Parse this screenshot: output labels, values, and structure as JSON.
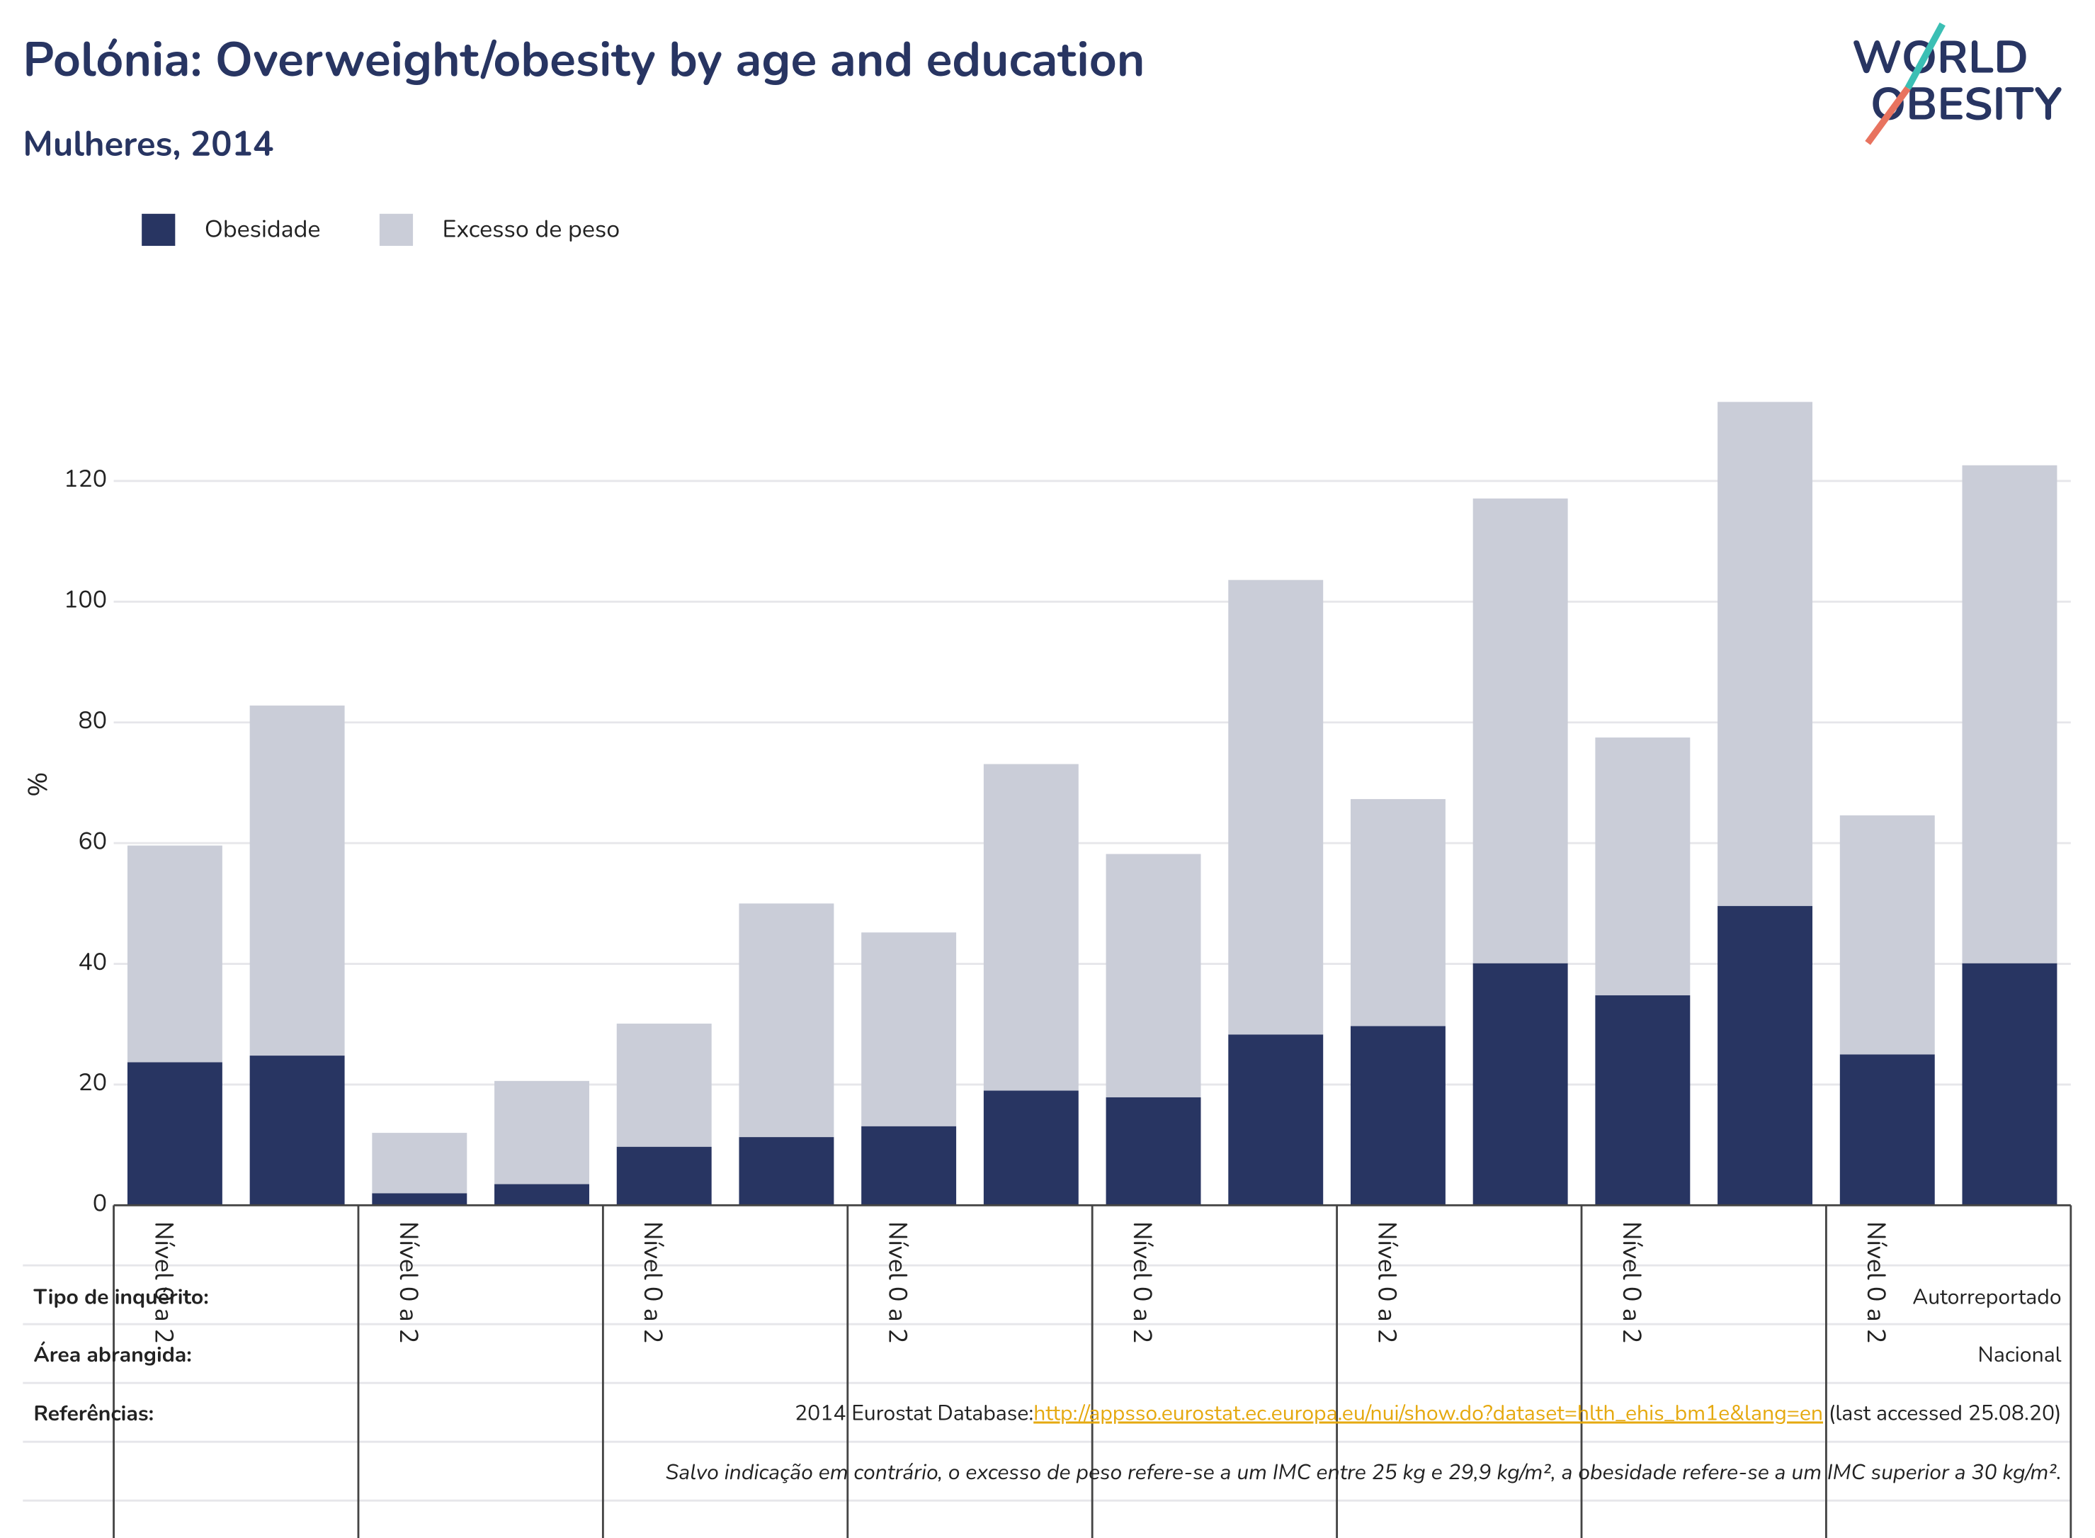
{
  "chart_data": {
    "type": "bar",
    "stacked": true,
    "title": "Polónia: Overweight/obesity by age and education",
    "subtitle": "Mulheres, 2014",
    "y_label": "%",
    "categories": [
      "Nível 0 a 2",
      null,
      "Nível 0 a 2",
      null,
      "Nível 0 a 2",
      null,
      "Nível 0 a 2",
      null,
      "Nível 0 a 2",
      null,
      "Nível 0 a 2",
      null,
      "Nível 0 a 2",
      null,
      "Nível 0 a 2",
      null
    ],
    "series": [
      {
        "name": "Obesidade",
        "color": "#283562",
        "values": [
          23.7,
          24.8,
          2.0,
          3.5,
          9.7,
          11.3,
          13.1,
          19.0,
          17.9,
          28.3,
          29.7,
          40.1,
          34.8,
          49.6,
          25.0,
          40.1
        ]
      },
      {
        "name": "Excesso de peso",
        "color": "#cacdd8",
        "values": [
          35.9,
          58.0,
          10.0,
          17.1,
          20.4,
          38.7,
          32.1,
          54.1,
          40.3,
          75.3,
          37.6,
          77.0,
          42.7,
          83.5,
          39.6,
          82.5
        ]
      }
    ],
    "ylim": [
      0,
      136
    ],
    "yticks": [
      0,
      20,
      40,
      60,
      80,
      100,
      120
    ],
    "grid": true,
    "legend": "top-left"
  },
  "logo": {
    "line1": "WORLD",
    "line2": "OBESITY"
  },
  "info": {
    "survey_label": "Tipo de inquérito:",
    "survey_value": "Autorreportado",
    "area_label": "Área abrangida:",
    "area_value": "Nacional",
    "refs_label": "Referências:",
    "refs_prefix": "2014 Eurostat Database:",
    "refs_link": "http://appsso.eurostat.ec.europa.eu/nui/show.do?dataset=hlth_ehis_bm1e&lang=en",
    "refs_suffix": " (last accessed 25.08.20)",
    "note": "Salvo indicação em contrário, o excesso de peso refere-se a um IMC entre 25 kg e 29,9 kg/m², a obesidade refere-se a um IMC superior a 30 kg/m²."
  }
}
